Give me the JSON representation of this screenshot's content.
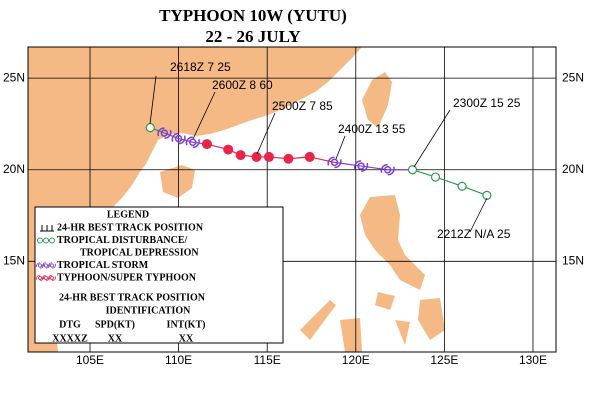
{
  "title": "TYPHOON 10W (YUTU)",
  "subtitle": "22 - 26 JULY",
  "lon_range": [
    101.5,
    131.3
  ],
  "lat_range": [
    10.05,
    26.7
  ],
  "lon_ticks": [
    {
      "value": 105,
      "label": "105E"
    },
    {
      "value": 110,
      "label": "110E"
    },
    {
      "value": 115,
      "label": "115E"
    },
    {
      "value": 120,
      "label": "120E"
    },
    {
      "value": 125,
      "label": "125E"
    },
    {
      "value": 130,
      "label": "130E"
    }
  ],
  "lat_ticks": [
    {
      "value": 15,
      "label": "15N"
    },
    {
      "value": 20,
      "label": "20N"
    },
    {
      "value": 25,
      "label": "25N"
    }
  ],
  "track": {
    "lon": [
      127.4,
      126.0,
      124.5,
      123.2,
      121.8,
      120.3,
      118.8,
      117.4,
      116.2,
      115.1,
      114.4,
      113.5,
      112.8,
      111.6,
      110.8,
      110.0,
      109.2,
      108.4
    ],
    "lat": [
      18.6,
      19.1,
      19.6,
      20.0,
      20.0,
      20.2,
      20.4,
      20.7,
      20.6,
      20.7,
      20.7,
      20.8,
      21.1,
      21.4,
      21.5,
      21.7,
      22.0,
      22.3
    ],
    "marker": [
      "circle",
      "circle",
      "circle",
      "circle",
      "storm",
      "storm",
      "storm",
      "dot",
      "dot",
      "dot",
      "dot",
      "dot",
      "dot",
      "dot",
      "storm",
      "storm",
      "storm",
      "circle"
    ]
  },
  "annotations": [
    "2618Z  7  25",
    "2600Z  8  60",
    "2500Z  7  85",
    "2400Z  13  55",
    "2300Z  15  25",
    "2212Z  N/A  25"
  ],
  "legend": {
    "title": "LEGEND",
    "items": [
      {
        "marker": "line",
        "color": "#000000",
        "lines": [
          "24-HR BEST TRACK POSITION"
        ]
      },
      {
        "marker": "circle",
        "color": "#2e9a55",
        "lines": [
          "TROPICAL DISTURBANCE/",
          "TROPICAL DEPRESSION"
        ]
      },
      {
        "marker": "storm",
        "color": "#7b3fd0",
        "lines": [
          "TROPICAL STORM"
        ]
      },
      {
        "marker": "dot",
        "color": "#e8264a",
        "lines": [
          "TYPHOON/SUPER TYPHOON"
        ]
      }
    ],
    "id_title": [
      "24-HR BEST TRACK POSITION",
      "IDENTIFICATION"
    ],
    "columns": [
      "DTG",
      "SPD(KT)",
      "INT(KT)"
    ],
    "example": [
      "XXXXZ",
      "XX",
      "XX"
    ]
  }
}
